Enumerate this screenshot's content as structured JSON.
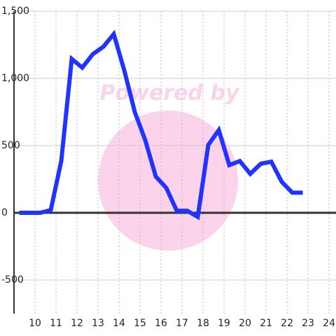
{
  "chart_data": {
    "type": "line",
    "watermark": "Powered by",
    "x": [
      9.25,
      9.75,
      10.25,
      10.75,
      11.25,
      11.75,
      12.25,
      12.75,
      13.25,
      13.75,
      14.25,
      14.75,
      15.25,
      15.75,
      16.25,
      16.75,
      17.25,
      17.75,
      18.25,
      18.75,
      19.25,
      19.75,
      20.25,
      20.75,
      21.25,
      21.75,
      22.25,
      22.75
    ],
    "series": [
      {
        "color": "#2233ff",
        "values": [
          0,
          0,
          0,
          20,
          385,
          1145,
          1080,
          1180,
          1235,
          1330,
          1060,
          750,
          540,
          270,
          185,
          15,
          15,
          -30,
          505,
          615,
          355,
          385,
          290,
          365,
          380,
          230,
          150,
          150
        ]
      }
    ],
    "xlim": [
      9,
      24.33
    ],
    "xticks": [
      10,
      11,
      12,
      13,
      14,
      15,
      16,
      17,
      18,
      19,
      20,
      21,
      22,
      23,
      24
    ],
    "ylim": [
      -750,
      1500
    ],
    "yticks": [
      {
        "value": 1500,
        "label": "1,500"
      },
      {
        "value": 1000,
        "label": "1,000"
      },
      500,
      0,
      -500
    ],
    "grid": true
  }
}
